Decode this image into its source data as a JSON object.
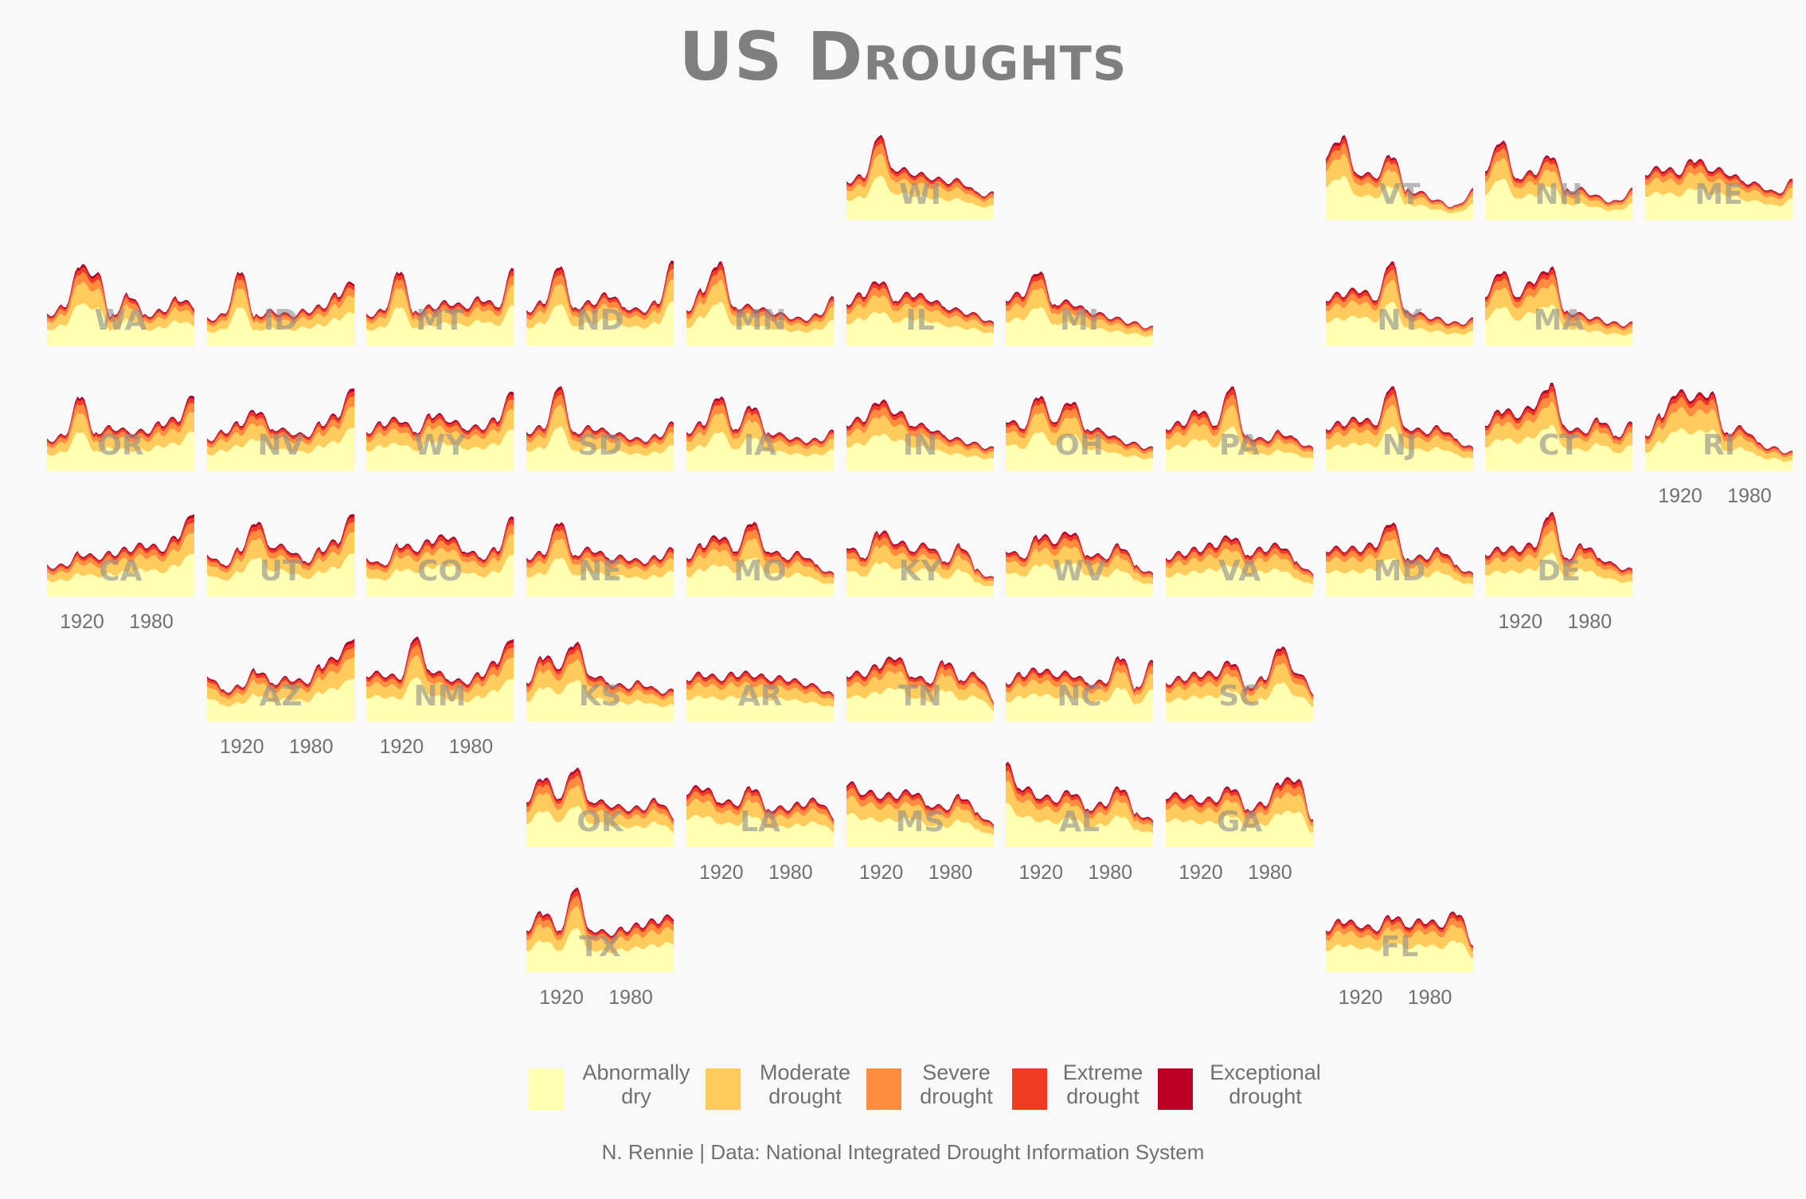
{
  "title": "US Droughts",
  "caption": "N. Rennie | Data: National Integrated Drought Information System",
  "legend": [
    {
      "label": "Abnormally\ndry",
      "color": "#ffffb2"
    },
    {
      "label": "Moderate\ndrought",
      "color": "#fecc5c"
    },
    {
      "label": "Severe\ndrought",
      "color": "#fd8d3c"
    },
    {
      "label": "Extreme\ndrought",
      "color": "#f03b20"
    },
    {
      "label": "Exceptional\ndrought",
      "color": "#bd0026"
    }
  ],
  "chart_data": {
    "type": "area",
    "subtype": "stacked area small multiples (geofacet grid of US states)",
    "x_range": [
      1895,
      2022
    ],
    "x_ticks": [
      "1920",
      "1980"
    ],
    "series_names": [
      "Abnormally dry",
      "Moderate drought",
      "Severe drought",
      "Extreme drought",
      "Exceptional drought"
    ],
    "value_scale": "relative drought index (stacked), 0 at panel bottom",
    "states": [
      {
        "state": "WI",
        "row": 0,
        "col": 5,
        "peaks": [
          0.45,
          0.5,
          0.95,
          0.6,
          0.55,
          0.5,
          0.45,
          0.45,
          0.3,
          0.3
        ]
      },
      {
        "state": "VT",
        "row": 0,
        "col": 8,
        "peaks": [
          0.75,
          0.95,
          0.55,
          0.5,
          0.75,
          0.35,
          0.3,
          0.2,
          0.15,
          0.35
        ]
      },
      {
        "state": "NH",
        "row": 0,
        "col": 9,
        "peaks": [
          0.6,
          0.9,
          0.5,
          0.55,
          0.75,
          0.35,
          0.35,
          0.25,
          0.2,
          0.35
        ]
      },
      {
        "state": "ME",
        "row": 0,
        "col": 10,
        "peaks": [
          0.55,
          0.6,
          0.55,
          0.7,
          0.6,
          0.55,
          0.45,
          0.4,
          0.3,
          0.45
        ]
      },
      {
        "state": "WA",
        "row": 1,
        "col": 0,
        "peaks": [
          0.35,
          0.45,
          0.9,
          0.85,
          0.35,
          0.6,
          0.35,
          0.4,
          0.55,
          0.45
        ]
      },
      {
        "state": "ID",
        "row": 1,
        "col": 1,
        "peaks": [
          0.3,
          0.35,
          0.85,
          0.35,
          0.4,
          0.35,
          0.4,
          0.45,
          0.6,
          0.75
        ]
      },
      {
        "state": "MT",
        "row": 1,
        "col": 2,
        "peaks": [
          0.35,
          0.4,
          0.85,
          0.4,
          0.45,
          0.5,
          0.45,
          0.55,
          0.45,
          0.9
        ]
      },
      {
        "state": "ND",
        "row": 1,
        "col": 3,
        "peaks": [
          0.4,
          0.5,
          0.9,
          0.45,
          0.5,
          0.6,
          0.45,
          0.4,
          0.5,
          1.0
        ]
      },
      {
        "state": "MN",
        "row": 1,
        "col": 4,
        "peaks": [
          0.4,
          0.65,
          0.95,
          0.45,
          0.45,
          0.4,
          0.35,
          0.3,
          0.35,
          0.55
        ]
      },
      {
        "state": "IL",
        "row": 1,
        "col": 5,
        "peaks": [
          0.5,
          0.6,
          0.75,
          0.55,
          0.6,
          0.55,
          0.45,
          0.4,
          0.35,
          0.25
        ]
      },
      {
        "state": "MI",
        "row": 1,
        "col": 6,
        "peaks": [
          0.55,
          0.6,
          0.85,
          0.5,
          0.5,
          0.4,
          0.35,
          0.3,
          0.25,
          0.2
        ]
      },
      {
        "state": "NY",
        "row": 1,
        "col": 8,
        "peaks": [
          0.55,
          0.6,
          0.65,
          0.55,
          0.95,
          0.4,
          0.35,
          0.3,
          0.25,
          0.3
        ]
      },
      {
        "state": "MA",
        "row": 1,
        "col": 9,
        "peaks": [
          0.6,
          0.85,
          0.6,
          0.75,
          0.9,
          0.4,
          0.35,
          0.3,
          0.25,
          0.25
        ]
      },
      {
        "state": "OR",
        "row": 2,
        "col": 0,
        "peaks": [
          0.35,
          0.4,
          0.85,
          0.45,
          0.5,
          0.45,
          0.45,
          0.55,
          0.6,
          0.9
        ]
      },
      {
        "state": "NV",
        "row": 2,
        "col": 1,
        "peaks": [
          0.35,
          0.45,
          0.55,
          0.7,
          0.5,
          0.45,
          0.4,
          0.55,
          0.65,
          1.0
        ]
      },
      {
        "state": "WY",
        "row": 2,
        "col": 2,
        "peaks": [
          0.45,
          0.55,
          0.6,
          0.45,
          0.65,
          0.6,
          0.5,
          0.5,
          0.6,
          0.95
        ]
      },
      {
        "state": "SD",
        "row": 2,
        "col": 3,
        "peaks": [
          0.45,
          0.5,
          0.95,
          0.45,
          0.5,
          0.45,
          0.4,
          0.35,
          0.4,
          0.55
        ]
      },
      {
        "state": "IA",
        "row": 2,
        "col": 4,
        "peaks": [
          0.45,
          0.55,
          0.85,
          0.5,
          0.75,
          0.45,
          0.4,
          0.35,
          0.35,
          0.45
        ]
      },
      {
        "state": "IN",
        "row": 2,
        "col": 5,
        "peaks": [
          0.55,
          0.6,
          0.8,
          0.7,
          0.55,
          0.5,
          0.4,
          0.35,
          0.3,
          0.25
        ]
      },
      {
        "state": "OH",
        "row": 2,
        "col": 6,
        "peaks": [
          0.6,
          0.5,
          0.85,
          0.6,
          0.8,
          0.5,
          0.45,
          0.35,
          0.3,
          0.25
        ]
      },
      {
        "state": "PA",
        "row": 2,
        "col": 7,
        "peaks": [
          0.5,
          0.55,
          0.7,
          0.55,
          0.95,
          0.4,
          0.35,
          0.45,
          0.35,
          0.25
        ]
      },
      {
        "state": "NJ",
        "row": 2,
        "col": 8,
        "peaks": [
          0.5,
          0.55,
          0.6,
          0.55,
          0.95,
          0.5,
          0.45,
          0.5,
          0.35,
          0.25
        ]
      },
      {
        "state": "CT",
        "row": 2,
        "col": 9,
        "peaks": [
          0.55,
          0.7,
          0.65,
          0.75,
          1.0,
          0.5,
          0.45,
          0.6,
          0.4,
          0.55
        ]
      },
      {
        "state": "RI",
        "row": 2,
        "col": 10,
        "peaks": [
          0.4,
          0.65,
          0.9,
          0.85,
          0.9,
          0.45,
          0.5,
          0.3,
          0.25,
          0.2
        ]
      },
      {
        "state": "CA",
        "row": 3,
        "col": 0,
        "peaks": [
          0.35,
          0.35,
          0.5,
          0.45,
          0.5,
          0.55,
          0.6,
          0.55,
          0.7,
          1.0
        ]
      },
      {
        "state": "UT",
        "row": 3,
        "col": 1,
        "peaks": [
          0.5,
          0.35,
          0.55,
          0.85,
          0.6,
          0.55,
          0.4,
          0.55,
          0.65,
          1.0
        ]
      },
      {
        "state": "CO",
        "row": 3,
        "col": 2,
        "peaks": [
          0.45,
          0.35,
          0.6,
          0.55,
          0.65,
          0.7,
          0.55,
          0.45,
          0.55,
          0.95
        ]
      },
      {
        "state": "NE",
        "row": 3,
        "col": 3,
        "peaks": [
          0.45,
          0.5,
          0.85,
          0.5,
          0.55,
          0.45,
          0.45,
          0.4,
          0.45,
          0.55
        ]
      },
      {
        "state": "MO",
        "row": 3,
        "col": 4,
        "peaks": [
          0.45,
          0.6,
          0.7,
          0.55,
          0.85,
          0.55,
          0.45,
          0.5,
          0.35,
          0.25
        ]
      },
      {
        "state": "KY",
        "row": 3,
        "col": 5,
        "peaks": [
          0.6,
          0.45,
          0.75,
          0.65,
          0.55,
          0.6,
          0.4,
          0.6,
          0.3,
          0.2
        ]
      },
      {
        "state": "WV",
        "row": 3,
        "col": 6,
        "peaks": [
          0.55,
          0.45,
          0.7,
          0.65,
          0.75,
          0.5,
          0.45,
          0.6,
          0.35,
          0.25
        ]
      },
      {
        "state": "VA",
        "row": 3,
        "col": 7,
        "peaks": [
          0.45,
          0.5,
          0.55,
          0.6,
          0.7,
          0.5,
          0.55,
          0.6,
          0.4,
          0.25
        ]
      },
      {
        "state": "MD",
        "row": 3,
        "col": 8,
        "peaks": [
          0.55,
          0.55,
          0.55,
          0.6,
          0.85,
          0.45,
          0.45,
          0.55,
          0.35,
          0.25
        ]
      },
      {
        "state": "DE",
        "row": 3,
        "col": 9,
        "peaks": [
          0.5,
          0.55,
          0.55,
          0.6,
          0.95,
          0.45,
          0.6,
          0.45,
          0.35,
          0.3
        ]
      },
      {
        "state": "AZ",
        "row": 4,
        "col": 1,
        "peaks": [
          0.55,
          0.35,
          0.4,
          0.6,
          0.45,
          0.5,
          0.45,
          0.65,
          0.75,
          1.0
        ]
      },
      {
        "state": "NM",
        "row": 4,
        "col": 2,
        "peaks": [
          0.55,
          0.55,
          0.5,
          0.95,
          0.6,
          0.5,
          0.45,
          0.55,
          0.7,
          1.0
        ]
      },
      {
        "state": "KS",
        "row": 4,
        "col": 3,
        "peaks": [
          0.45,
          0.75,
          0.65,
          0.9,
          0.55,
          0.45,
          0.4,
          0.45,
          0.35,
          0.35
        ]
      },
      {
        "state": "AR",
        "row": 4,
        "col": 4,
        "peaks": [
          0.5,
          0.55,
          0.5,
          0.55,
          0.55,
          0.5,
          0.5,
          0.45,
          0.4,
          0.3
        ]
      },
      {
        "state": "TN",
        "row": 4,
        "col": 5,
        "peaks": [
          0.55,
          0.55,
          0.65,
          0.75,
          0.55,
          0.45,
          0.7,
          0.5,
          0.55,
          0.25
        ]
      },
      {
        "state": "NC",
        "row": 4,
        "col": 6,
        "peaks": [
          0.45,
          0.55,
          0.6,
          0.55,
          0.55,
          0.45,
          0.45,
          0.75,
          0.4,
          0.7
        ]
      },
      {
        "state": "SC",
        "row": 4,
        "col": 7,
        "peaks": [
          0.45,
          0.5,
          0.55,
          0.55,
          0.7,
          0.4,
          0.5,
          0.85,
          0.6,
          0.35
        ]
      },
      {
        "state": "OK",
        "row": 5,
        "col": 3,
        "peaks": [
          0.55,
          0.8,
          0.6,
          0.9,
          0.55,
          0.5,
          0.45,
          0.45,
          0.55,
          0.35
        ]
      },
      {
        "state": "LA",
        "row": 5,
        "col": 4,
        "peaks": [
          0.65,
          0.7,
          0.55,
          0.5,
          0.7,
          0.45,
          0.45,
          0.5,
          0.55,
          0.35
        ]
      },
      {
        "state": "MS",
        "row": 5,
        "col": 5,
        "peaks": [
          0.75,
          0.65,
          0.6,
          0.6,
          0.65,
          0.5,
          0.45,
          0.6,
          0.4,
          0.25
        ]
      },
      {
        "state": "AL",
        "row": 5,
        "col": 6,
        "peaks": [
          0.95,
          0.7,
          0.6,
          0.55,
          0.65,
          0.45,
          0.5,
          0.7,
          0.4,
          0.3
        ]
      },
      {
        "state": "GA",
        "row": 5,
        "col": 7,
        "peaks": [
          0.6,
          0.6,
          0.55,
          0.55,
          0.7,
          0.45,
          0.5,
          0.75,
          0.8,
          0.35
        ]
      },
      {
        "state": "TX",
        "row": 6,
        "col": 3,
        "peaks": [
          0.5,
          0.7,
          0.5,
          0.95,
          0.5,
          0.45,
          0.5,
          0.55,
          0.6,
          0.65
        ]
      },
      {
        "state": "FL",
        "row": 6,
        "col": 8,
        "peaks": [
          0.5,
          0.6,
          0.55,
          0.5,
          0.65,
          0.55,
          0.6,
          0.55,
          0.7,
          0.35
        ]
      }
    ],
    "ticked_states": [
      "RI",
      "CA",
      "DE",
      "AZ",
      "NM",
      "LA",
      "MS",
      "AL",
      "GA",
      "TX",
      "FL"
    ]
  }
}
